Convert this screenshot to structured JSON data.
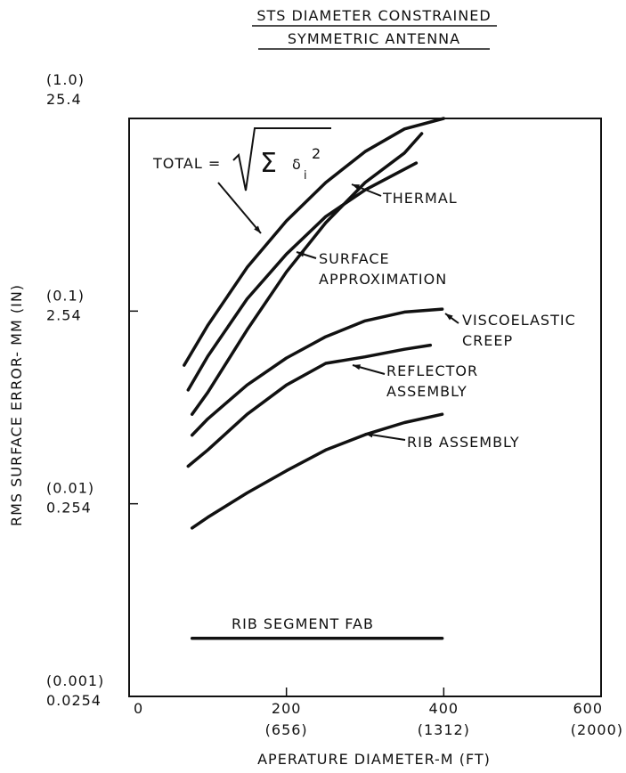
{
  "chart_data": {
    "type": "line",
    "title_lines": [
      "STS DIAMETER CONSTRAINED",
      "SYMMETRIC ANTENNA"
    ],
    "x_label": "APERATURE DIAMETER-M (FT)",
    "y_label": "RMS SURFACE ERROR- MM (IN)",
    "log_y": true,
    "xlim": [
      0,
      600
    ],
    "xticks": [
      0,
      200,
      400,
      600
    ],
    "xtick_ft_labels": [
      null,
      "(656)",
      "(1312)",
      "(2000)"
    ],
    "ylim": [
      0.0254,
      25.4
    ],
    "yticks": [
      0.0254,
      0.254,
      2.54,
      25.4
    ],
    "ytick_inch_labels": [
      "(0.001)",
      "(0.01)",
      "(0.1)",
      "(1.0)"
    ],
    "total_formula": {
      "sum": "Σ",
      "delta": "δ",
      "sub": "i",
      "sup": "2"
    },
    "series": [
      {
        "label": [
          "TOTAL ="
        ],
        "color": "#111111",
        "x": [
          70,
          100,
          150,
          200,
          250,
          300,
          350,
          400
        ],
        "values": [
          1.33,
          2.14,
          4.28,
          7.47,
          11.8,
          17.1,
          22.4,
          25.4
        ]
      },
      {
        "label": [
          "THERMAL"
        ],
        "color": "#111111",
        "x": [
          75,
          100,
          150,
          200,
          250,
          300,
          365
        ],
        "values": [
          0.99,
          1.48,
          2.94,
          5.02,
          7.86,
          10.8,
          14.9
        ]
      },
      {
        "label": [
          "SURFACE",
          "APPROXIMATION"
        ],
        "color": "#111111",
        "x": [
          80,
          100,
          150,
          200,
          250,
          300,
          350,
          372
        ],
        "values": [
          0.74,
          0.96,
          2.03,
          4.06,
          7.3,
          11.8,
          16.8,
          21.2
        ]
      },
      {
        "label": [
          "VISCOELASTIC",
          "CREEP"
        ],
        "color": "#111111",
        "x": [
          80,
          100,
          150,
          200,
          250,
          300,
          350,
          398
        ],
        "values": [
          0.577,
          0.7,
          1.05,
          1.45,
          1.87,
          2.26,
          2.51,
          2.6
        ]
      },
      {
        "label": [
          "REFLECTOR",
          "ASSEMBLY"
        ],
        "color": "#111111",
        "x": [
          75,
          100,
          150,
          200,
          250,
          300,
          350,
          383
        ],
        "values": [
          0.398,
          0.483,
          0.74,
          1.05,
          1.36,
          1.47,
          1.61,
          1.69
        ]
      },
      {
        "label": [
          "RIB ASSEMBLY"
        ],
        "color": "#111111",
        "x": [
          80,
          100,
          150,
          200,
          250,
          300,
          350,
          398
        ],
        "values": [
          0.19,
          0.216,
          0.289,
          0.377,
          0.483,
          0.58,
          0.67,
          0.74
        ]
      },
      {
        "label": [
          "RIB SEGMENT FAB"
        ],
        "color": "#111111",
        "x": [
          80,
          398
        ],
        "values": [
          0.0509,
          0.0509
        ]
      }
    ]
  }
}
